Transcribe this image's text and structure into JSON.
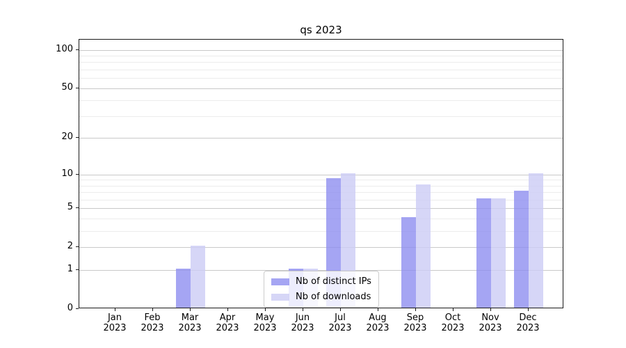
{
  "chart_data": {
    "type": "bar",
    "title": "qs 2023",
    "categories": [
      "Jan",
      "Feb",
      "Mar",
      "Apr",
      "May",
      "Jun",
      "Jul",
      "Aug",
      "Sep",
      "Oct",
      "Nov",
      "Dec"
    ],
    "category_year": "2023",
    "series": [
      {
        "name": "Nb of distinct IPs",
        "color": "rgba(140,140,240,0.78)",
        "values": [
          0,
          0,
          1,
          0,
          0,
          1,
          9,
          0,
          4,
          0,
          6,
          7
        ]
      },
      {
        "name": "Nb of downloads",
        "color": "rgba(205,205,245,0.82)",
        "values": [
          0,
          0,
          2,
          0,
          0,
          1,
          10,
          0,
          8,
          0,
          6,
          10
        ]
      }
    ],
    "xlabel": "",
    "ylabel": "",
    "yscale": "log1p",
    "ylim": [
      0,
      120
    ],
    "yticks": [
      0,
      1,
      2,
      5,
      10,
      20,
      50,
      100
    ],
    "yticks_minor": [
      3,
      4,
      6,
      7,
      8,
      9,
      30,
      40,
      60,
      70,
      80,
      90
    ],
    "grid": {
      "enabled": true,
      "major_color": "#c9c9c9",
      "minor_color": "#ececec"
    },
    "legend": {
      "position": "inside lower-center",
      "border_color": "#cccccc"
    }
  }
}
